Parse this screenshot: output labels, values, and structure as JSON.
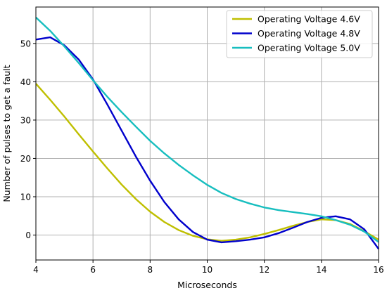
{
  "chart_data": {
    "type": "line",
    "title": "",
    "xlabel": "Microseconds",
    "ylabel": "Number of pulses to get a fault",
    "xlim": [
      4,
      16
    ],
    "ylim": [
      -6.5,
      59.5
    ],
    "grid": true,
    "legend_position": "top-right",
    "x_ticks": [
      4,
      6,
      8,
      10,
      12,
      14,
      16
    ],
    "y_ticks": [
      0,
      10,
      20,
      30,
      40,
      50
    ],
    "series": [
      {
        "name": "Operating Voltage 4.6V",
        "color": "#bfbf00",
        "x": [
          4,
          4.5,
          5,
          5.5,
          6,
          6.5,
          7,
          7.5,
          8,
          8.5,
          9,
          9.5,
          10,
          10.5,
          11,
          11.5,
          12,
          12.5,
          13,
          13.5,
          14,
          14.5,
          15,
          15.5,
          16
        ],
        "y": [
          39.5,
          35.3,
          30.9,
          26.3,
          21.8,
          17.4,
          13.2,
          9.4,
          6.1,
          3.4,
          1.3,
          -0.2,
          -1.1,
          -1.5,
          -1.2,
          -0.6,
          0.3,
          1.3,
          2.4,
          3.4,
          4.1,
          3.9,
          2.9,
          1.0,
          -1.2
        ]
      },
      {
        "name": "Operating Voltage 4.8V",
        "color": "#0000cc",
        "x": [
          4,
          4.5,
          5,
          5.5,
          6,
          6.5,
          7,
          7.5,
          8,
          8.5,
          9,
          9.5,
          10,
          10.5,
          11,
          11.5,
          12,
          12.5,
          13,
          13.5,
          14,
          14.5,
          15,
          15.5,
          16
        ],
        "y": [
          51,
          51.6,
          49.5,
          45.8,
          40.6,
          34.1,
          27.3,
          20.5,
          14.2,
          8.6,
          4.1,
          0.8,
          -1.2,
          -1.9,
          -1.6,
          -1.2,
          -0.6,
          0.5,
          1.9,
          3.4,
          4.5,
          4.9,
          4.1,
          1.5,
          -3.6
        ]
      },
      {
        "name": "Operating Voltage 5.0V",
        "color": "#17bebf",
        "x": [
          4,
          4.5,
          5,
          5.5,
          6,
          6.5,
          7,
          7.5,
          8,
          8.5,
          9,
          9.5,
          10,
          10.5,
          11,
          11.5,
          12,
          12.5,
          13,
          13.5,
          14,
          14.5,
          15,
          15.5,
          16
        ],
        "y": [
          56.8,
          53.3,
          49.2,
          44.9,
          40.4,
          36.1,
          32.1,
          28.3,
          24.6,
          21.3,
          18.3,
          15.6,
          13.1,
          11.0,
          9.4,
          8.2,
          7.2,
          6.5,
          6.0,
          5.5,
          4.9,
          3.9,
          2.7,
          0.9,
          -1.8
        ]
      }
    ]
  }
}
